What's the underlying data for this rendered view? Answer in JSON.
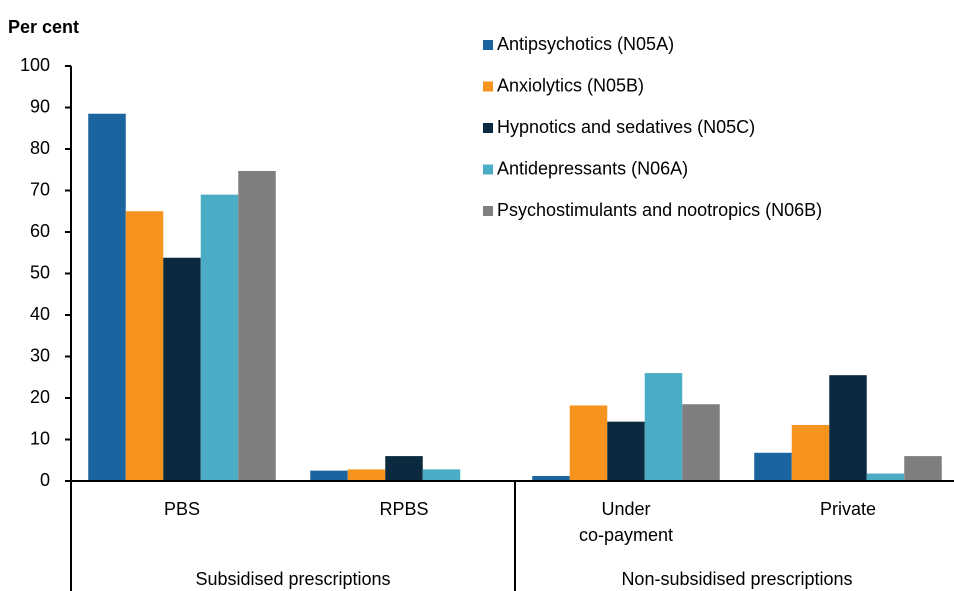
{
  "chart_data": {
    "type": "bar",
    "y_label": "Per cent",
    "categories": [
      "PBS",
      "RPBS",
      "Under co-payment",
      "Private"
    ],
    "group_labels": [
      "Subsidised prescriptions",
      "Non-subsidised prescriptions"
    ],
    "series": [
      {
        "name": "Antipsychotics (N05A)",
        "color": "#1a64a0",
        "values": [
          88.5,
          2.5,
          1.2,
          6.8
        ]
      },
      {
        "name": "Anxiolytics (N05B)",
        "color": "#f7941d",
        "values": [
          65,
          2.8,
          18.2,
          13.5
        ]
      },
      {
        "name": "Hypnotics and sedatives (N05C)",
        "color": "#0b2a3f",
        "values": [
          53.8,
          6,
          14.3,
          25.5
        ]
      },
      {
        "name": "Antidepressants (N06A)",
        "color": "#4bacc6",
        "values": [
          69,
          2.8,
          26,
          1.8
        ]
      },
      {
        "name": "Psychostimulants and nootropics (N06B)",
        "color": "#7f7f7f",
        "values": [
          74.7,
          0,
          18.5,
          6
        ]
      }
    ],
    "ylim": [
      0,
      100
    ],
    "yticks": [
      0,
      10,
      20,
      30,
      40,
      50,
      60,
      70,
      80,
      90,
      100
    ],
    "grid": false,
    "legend": "top-right"
  }
}
